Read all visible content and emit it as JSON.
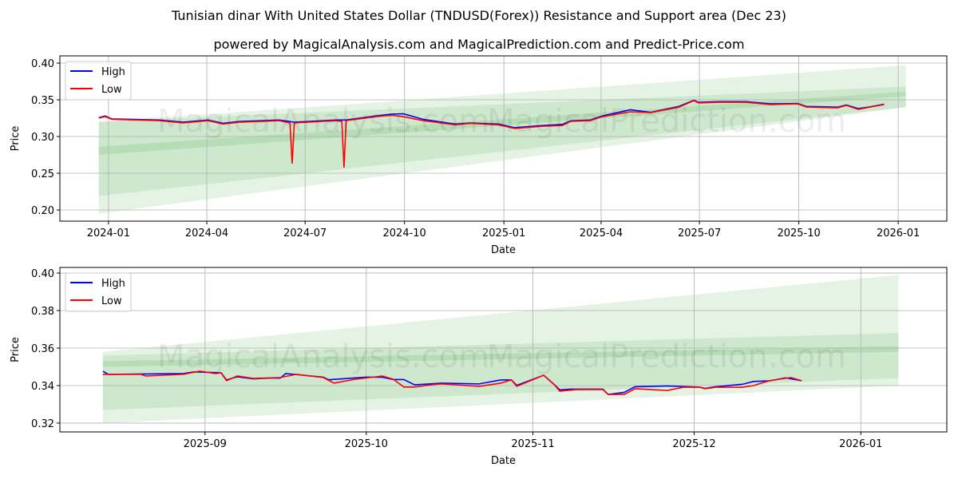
{
  "title": "Tunisian dinar With United States Dollar (TNDUSD(Forex)) Resistance and Support area (Dec 23)",
  "subtitle": "powered by MagicalAnalysis.com and MagicalPrediction.com and Predict-Price.com",
  "watermarks": [
    "MagicalAnalysis.com",
    "MagicalPrediction.com"
  ],
  "colors": {
    "high": "#0000ff",
    "low": "#ff0000",
    "band": "#2ca02c"
  },
  "chart_data": [
    {
      "type": "line",
      "xlabel": "Date",
      "ylabel": "Price",
      "xlim": [
        "2023-11-17",
        "2026-02-15"
      ],
      "ylim": [
        0.1848,
        0.4098
      ],
      "xticks": [
        "2024-01",
        "2024-04",
        "2024-07",
        "2024-10",
        "2025-01",
        "2025-04",
        "2025-07",
        "2025-10",
        "2026-01"
      ],
      "yticks": [
        0.2,
        0.25,
        0.3,
        0.35,
        0.4
      ],
      "legend": {
        "position": "top-left",
        "entries": [
          "High",
          "Low"
        ]
      },
      "grid": true,
      "bands": {
        "x": [
          "2023-12-23",
          "2026-01-08"
        ],
        "outer": [
          [
            0.195,
            0.32
          ],
          [
            0.34,
            0.397
          ]
        ],
        "mid": [
          [
            0.219,
            0.32
          ],
          [
            0.34,
            0.368
          ]
        ],
        "core": [
          [
            0.275,
            0.286
          ],
          [
            0.355,
            0.361
          ]
        ]
      },
      "series": [
        {
          "name": "High",
          "points": [
            [
              "2023-12-23",
              0.3255
            ],
            [
              "2023-12-29",
              0.328
            ],
            [
              "2024-01-04",
              0.324
            ],
            [
              "2024-02-17",
              0.3225
            ],
            [
              "2024-03-10",
              0.3195
            ],
            [
              "2024-04-02",
              0.3225
            ],
            [
              "2024-04-16",
              0.318
            ],
            [
              "2024-05-01",
              0.3205
            ],
            [
              "2024-06-07",
              0.3225
            ],
            [
              "2024-06-21",
              0.3195
            ],
            [
              "2024-07-29",
              0.3225
            ],
            [
              "2024-08-08",
              0.3225
            ],
            [
              "2024-09-04",
              0.328
            ],
            [
              "2024-09-19",
              0.3305
            ],
            [
              "2024-09-30",
              0.331
            ],
            [
              "2024-10-18",
              0.3235
            ],
            [
              "2024-11-17",
              0.317
            ],
            [
              "2024-12-01",
              0.3185
            ],
            [
              "2024-12-27",
              0.317
            ],
            [
              "2025-01-11",
              0.312
            ],
            [
              "2025-02-06",
              0.315
            ],
            [
              "2025-02-24",
              0.3165
            ],
            [
              "2025-03-04",
              0.3215
            ],
            [
              "2025-03-22",
              0.3225
            ],
            [
              "2025-04-02",
              0.328
            ],
            [
              "2025-04-28",
              0.3365
            ],
            [
              "2025-05-17",
              0.333
            ],
            [
              "2025-06-12",
              0.341
            ],
            [
              "2025-06-26",
              0.3495
            ],
            [
              "2025-06-30",
              0.3465
            ],
            [
              "2025-07-19",
              0.3475
            ],
            [
              "2025-08-13",
              0.3475
            ],
            [
              "2025-09-05",
              0.3445
            ],
            [
              "2025-09-30",
              0.345
            ],
            [
              "2025-10-08",
              0.341
            ],
            [
              "2025-11-06",
              0.34
            ],
            [
              "2025-11-14",
              0.343
            ],
            [
              "2025-11-25",
              0.338
            ],
            [
              "2025-12-06",
              0.3405
            ],
            [
              "2025-12-19",
              0.344
            ]
          ]
        },
        {
          "name": "Low",
          "points": [
            [
              "2023-12-23",
              0.325
            ],
            [
              "2023-12-29",
              0.3272
            ],
            [
              "2024-01-04",
              0.3235
            ],
            [
              "2024-02-17",
              0.3217
            ],
            [
              "2024-03-10",
              0.3185
            ],
            [
              "2024-04-02",
              0.3217
            ],
            [
              "2024-04-16",
              0.317
            ],
            [
              "2024-05-01",
              0.3195
            ],
            [
              "2024-06-07",
              0.3217
            ],
            [
              "2024-06-17",
              0.3185
            ],
            [
              "2024-06-19",
              0.263
            ],
            [
              "2024-06-21",
              0.3185
            ],
            [
              "2024-07-29",
              0.3217
            ],
            [
              "2024-08-04",
              0.3207
            ],
            [
              "2024-08-06",
              0.2576
            ],
            [
              "2024-08-08",
              0.3217
            ],
            [
              "2024-09-04",
              0.327
            ],
            [
              "2024-09-19",
              0.329
            ],
            [
              "2024-09-30",
              0.327
            ],
            [
              "2024-10-18",
              0.3217
            ],
            [
              "2024-11-17",
              0.316
            ],
            [
              "2024-12-01",
              0.318
            ],
            [
              "2024-12-27",
              0.316
            ],
            [
              "2025-01-11",
              0.311
            ],
            [
              "2025-02-06",
              0.314
            ],
            [
              "2025-02-24",
              0.315
            ],
            [
              "2025-03-04",
              0.3207
            ],
            [
              "2025-03-22",
              0.3217
            ],
            [
              "2025-04-02",
              0.327
            ],
            [
              "2025-04-28",
              0.3337
            ],
            [
              "2025-05-17",
              0.3326
            ],
            [
              "2025-06-12",
              0.34
            ],
            [
              "2025-06-26",
              0.349
            ],
            [
              "2025-06-30",
              0.3457
            ],
            [
              "2025-07-19",
              0.3467
            ],
            [
              "2025-08-13",
              0.3467
            ],
            [
              "2025-09-05",
              0.3435
            ],
            [
              "2025-09-30",
              0.3445
            ],
            [
              "2025-10-08",
              0.3402
            ],
            [
              "2025-11-06",
              0.3391
            ],
            [
              "2025-11-14",
              0.3424
            ],
            [
              "2025-11-25",
              0.337
            ],
            [
              "2025-12-06",
              0.3402
            ],
            [
              "2025-12-19",
              0.3435
            ]
          ]
        }
      ]
    },
    {
      "type": "line",
      "xlabel": "Date",
      "ylabel": "Price",
      "xlim": [
        "2025-08-05",
        "2026-01-17"
      ],
      "ylim": [
        0.3153,
        0.403
      ],
      "xticks": [
        "2025-09",
        "2025-10",
        "2025-11",
        "2025-12",
        "2026-01"
      ],
      "yticks": [
        0.32,
        0.34,
        0.36,
        0.38,
        0.4
      ],
      "legend": {
        "position": "top-left",
        "entries": [
          "High",
          "Low"
        ]
      },
      "grid": true,
      "bands": {
        "x": [
          "2025-08-13",
          "2026-01-08"
        ],
        "outer": [
          [
            0.32,
            0.358
          ],
          [
            0.34,
            0.399
          ]
        ],
        "mid": [
          [
            0.327,
            0.356
          ],
          [
            0.344,
            0.368
          ]
        ],
        "core": [
          [
            0.35,
            0.353
          ],
          [
            0.358,
            0.361
          ]
        ]
      },
      "series": [
        {
          "name": "High",
          "points": [
            [
              "2025-08-13",
              0.3477
            ],
            [
              "2025-08-14",
              0.346
            ],
            [
              "2025-08-21",
              0.3462
            ],
            [
              "2025-08-28",
              0.3464
            ],
            [
              "2025-08-30",
              0.3473
            ],
            [
              "2025-09-04",
              0.3468
            ],
            [
              "2025-09-05",
              0.343
            ],
            [
              "2025-09-07",
              0.3447
            ],
            [
              "2025-09-10",
              0.3436
            ],
            [
              "2025-09-13",
              0.344
            ],
            [
              "2025-09-15",
              0.344
            ],
            [
              "2025-09-16",
              0.3464
            ],
            [
              "2025-09-23",
              0.3445
            ],
            [
              "2025-09-24",
              0.3431
            ],
            [
              "2025-10-01",
              0.3445
            ],
            [
              "2025-10-04",
              0.3445
            ],
            [
              "2025-10-06",
              0.3432
            ],
            [
              "2025-10-08",
              0.3432
            ],
            [
              "2025-10-10",
              0.3404
            ],
            [
              "2025-10-15",
              0.3413
            ],
            [
              "2025-10-22",
              0.3409
            ],
            [
              "2025-10-26",
              0.343
            ],
            [
              "2025-10-28",
              0.343
            ],
            [
              "2025-10-29",
              0.3401
            ],
            [
              "2025-11-03",
              0.3455
            ],
            [
              "2025-11-05",
              0.3405
            ],
            [
              "2025-11-06",
              0.3377
            ],
            [
              "2025-11-08",
              0.3381
            ],
            [
              "2025-11-14",
              0.3381
            ],
            [
              "2025-11-15",
              0.3353
            ],
            [
              "2025-11-18",
              0.3364
            ],
            [
              "2025-11-20",
              0.3394
            ],
            [
              "2025-11-26",
              0.3398
            ],
            [
              "2025-12-02",
              0.3392
            ],
            [
              "2025-12-03",
              0.3385
            ],
            [
              "2025-12-05",
              0.3394
            ],
            [
              "2025-12-10",
              0.3407
            ],
            [
              "2025-12-12",
              0.3422
            ],
            [
              "2025-12-15",
              0.3425
            ],
            [
              "2025-12-18",
              0.3441
            ],
            [
              "2025-12-21",
              0.3426
            ]
          ]
        },
        {
          "name": "Low",
          "points": [
            [
              "2025-08-13",
              0.346
            ],
            [
              "2025-08-20",
              0.346
            ],
            [
              "2025-08-21",
              0.3451
            ],
            [
              "2025-08-28",
              0.346
            ],
            [
              "2025-08-31",
              0.3477
            ],
            [
              "2025-09-03",
              0.3464
            ],
            [
              "2025-09-04",
              0.3468
            ],
            [
              "2025-09-05",
              0.3426
            ],
            [
              "2025-09-07",
              0.3451
            ],
            [
              "2025-09-10",
              0.3438
            ],
            [
              "2025-09-15",
              0.3443
            ],
            [
              "2025-09-18",
              0.346
            ],
            [
              "2025-09-23",
              0.3443
            ],
            [
              "2025-09-25",
              0.3413
            ],
            [
              "2025-09-29",
              0.3434
            ],
            [
              "2025-10-04",
              0.3451
            ],
            [
              "2025-10-06",
              0.3434
            ],
            [
              "2025-10-08",
              0.3392
            ],
            [
              "2025-10-10",
              0.3392
            ],
            [
              "2025-10-13",
              0.3404
            ],
            [
              "2025-10-15",
              0.3409
            ],
            [
              "2025-10-22",
              0.3396
            ],
            [
              "2025-10-26",
              0.3413
            ],
            [
              "2025-10-28",
              0.343
            ],
            [
              "2025-10-29",
              0.3396
            ],
            [
              "2025-11-03",
              0.3455
            ],
            [
              "2025-11-05",
              0.3404
            ],
            [
              "2025-11-06",
              0.337
            ],
            [
              "2025-11-09",
              0.3379
            ],
            [
              "2025-11-14",
              0.3379
            ],
            [
              "2025-11-15",
              0.3353
            ],
            [
              "2025-11-18",
              0.3353
            ],
            [
              "2025-11-20",
              0.3383
            ],
            [
              "2025-11-26",
              0.3374
            ],
            [
              "2025-11-29",
              0.3391
            ],
            [
              "2025-12-02",
              0.3391
            ],
            [
              "2025-12-03",
              0.3383
            ],
            [
              "2025-12-05",
              0.3391
            ],
            [
              "2025-12-10",
              0.3391
            ],
            [
              "2025-12-12",
              0.34
            ],
            [
              "2025-12-15",
              0.3426
            ],
            [
              "2025-12-19",
              0.3443
            ],
            [
              "2025-12-21",
              0.3426
            ]
          ]
        }
      ]
    }
  ]
}
